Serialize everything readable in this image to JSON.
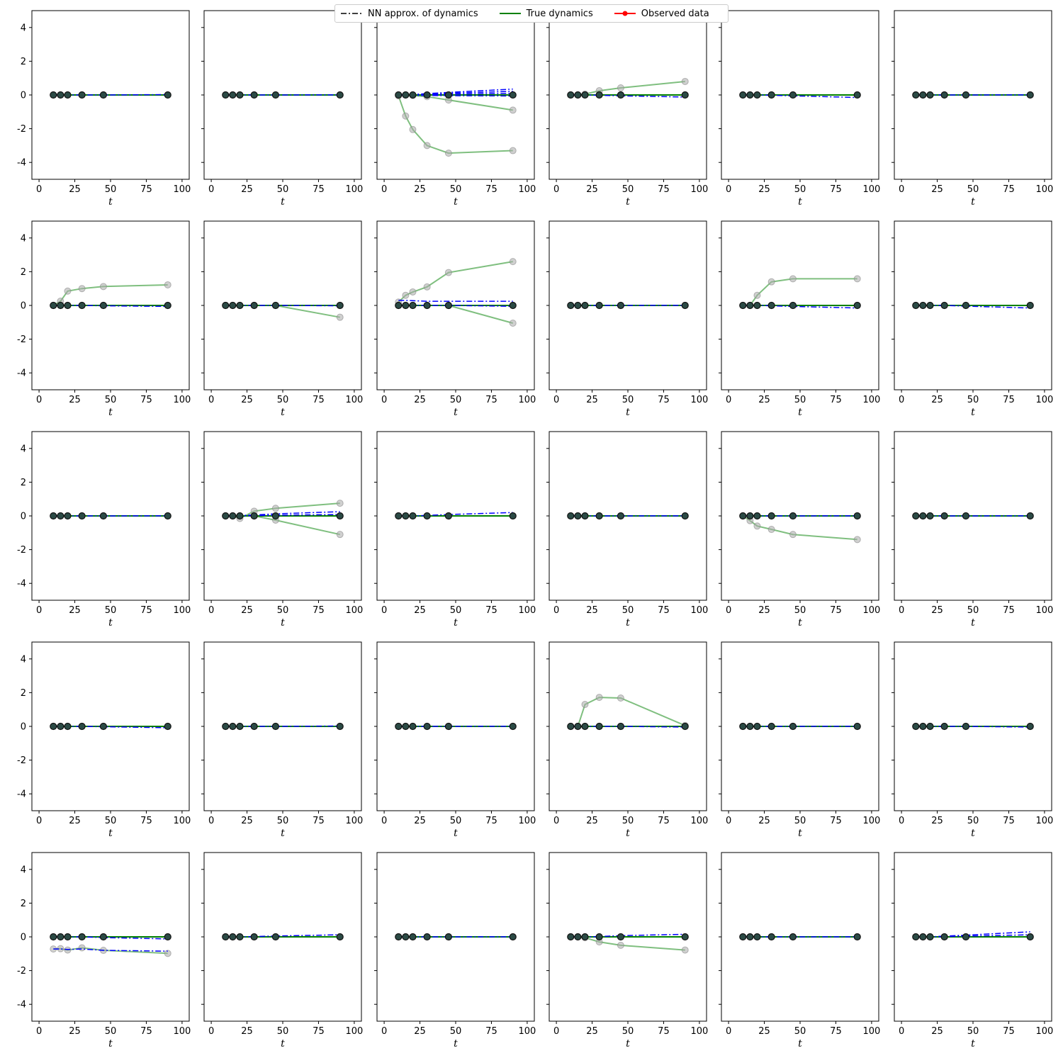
{
  "legend": {
    "nn_label": "NN approx. of dynamics",
    "true_label": "True dynamics",
    "obs_label": "Observed data"
  },
  "colors": {
    "true_line": "#008000",
    "nn_line": "#0000ff",
    "observed": "#ff0000",
    "marker_fill": "#2b4a45",
    "ghost": "#a9a9a9"
  },
  "chart_data": {
    "type": "line",
    "layout": "grid of 5 rows x 6 columns, shared y-axis per row",
    "xlabel": "t",
    "xlim": [
      -5,
      105
    ],
    "ylim": [
      -5,
      5
    ],
    "x_ticks": [
      0,
      25,
      50,
      75,
      100
    ],
    "y_ticks": [
      -4,
      -2,
      0,
      2,
      4
    ],
    "x_obs": [
      10,
      15,
      20,
      30,
      45,
      90
    ],
    "panels": [
      {
        "nn": [
          [
            0,
            0,
            0,
            0,
            0,
            0.02
          ]
        ],
        "gt": []
      },
      {
        "nn": [
          [
            0,
            0,
            0,
            0,
            0,
            0.01
          ]
        ],
        "gt": []
      },
      {
        "nn": [
          [
            0,
            0.01,
            0.03,
            0.08,
            0.15,
            0.35
          ],
          [
            0,
            0,
            0.02,
            0.05,
            0.1,
            0.22
          ],
          [
            0,
            0,
            0,
            0.02,
            0.04,
            0.1
          ],
          [
            0,
            0,
            -0.02,
            -0.03,
            -0.04,
            -0.06
          ]
        ],
        "gt": [
          [
            -0.05,
            -1.25,
            -2.05,
            -3.0,
            -3.45,
            -3.3
          ],
          [
            0,
            0,
            -0.03,
            -0.1,
            -0.3,
            -0.9
          ]
        ]
      },
      {
        "nn": [
          [
            0,
            0,
            0,
            -0.02,
            -0.05,
            -0.12
          ]
        ],
        "gt": [
          [
            0,
            0,
            0.05,
            0.25,
            0.42,
            0.8
          ]
        ]
      },
      {
        "nn": [
          [
            0,
            0,
            0,
            -0.02,
            -0.05,
            -0.15
          ]
        ],
        "gt": []
      },
      {
        "nn": [
          [
            0,
            0,
            0,
            0,
            0,
            0.01
          ]
        ],
        "gt": []
      },
      {
        "nn": [
          [
            0,
            0,
            0,
            0,
            -0.02,
            -0.06
          ]
        ],
        "gt": [
          [
            0,
            0.25,
            0.85,
            1.0,
            1.12,
            1.22
          ]
        ]
      },
      {
        "nn": [
          [
            0,
            0,
            0,
            0,
            0,
            -0.02
          ]
        ],
        "gt": [
          [
            0,
            0,
            0,
            0,
            0,
            -0.7
          ]
        ]
      },
      {
        "nn": [
          [
            0.3,
            0.3,
            0.28,
            0.25,
            0.25,
            0.25
          ],
          [
            0,
            0,
            0,
            0,
            0,
            -0.05
          ]
        ],
        "gt": [
          [
            0.2,
            0.6,
            0.8,
            1.1,
            1.95,
            2.6
          ],
          [
            0,
            0,
            0,
            0,
            0,
            -1.05
          ]
        ]
      },
      {
        "nn": [
          [
            0,
            0,
            0,
            0,
            0,
            0.01
          ]
        ],
        "gt": []
      },
      {
        "nn": [
          [
            0,
            0,
            0,
            -0.02,
            -0.06,
            -0.15
          ]
        ],
        "gt": [
          [
            0,
            0,
            0.6,
            1.4,
            1.58,
            1.58
          ]
        ]
      },
      {
        "nn": [
          [
            0,
            0,
            0,
            0,
            -0.04,
            -0.15
          ]
        ],
        "gt": []
      },
      {
        "nn": [
          [
            0,
            0,
            0,
            0,
            0,
            0.01
          ]
        ],
        "gt": []
      },
      {
        "nn": [
          [
            0,
            0,
            0.02,
            0.06,
            0.12,
            0.25
          ],
          [
            0,
            0,
            0,
            0.02,
            0.04,
            0.08
          ]
        ],
        "gt": [
          [
            0,
            0,
            -0.15,
            0.28,
            0.45,
            0.75
          ],
          [
            0,
            0,
            0,
            0,
            -0.25,
            -1.1
          ]
        ]
      },
      {
        "nn": [
          [
            0,
            0,
            0,
            0.03,
            0.08,
            0.2
          ]
        ],
        "gt": []
      },
      {
        "nn": [
          [
            0,
            0,
            0,
            0,
            0,
            0.01
          ]
        ],
        "gt": []
      },
      {
        "nn": [
          [
            0,
            0,
            0,
            0,
            0,
            0.01
          ]
        ],
        "gt": [
          [
            0,
            -0.28,
            -0.6,
            -0.8,
            -1.1,
            -1.4
          ]
        ]
      },
      {
        "nn": [
          [
            0,
            0,
            0,
            0,
            0,
            0.01
          ]
        ],
        "gt": []
      },
      {
        "nn": [
          [
            0,
            0,
            0,
            0,
            -0.02,
            -0.08
          ]
        ],
        "gt": []
      },
      {
        "nn": [
          [
            0,
            0,
            0,
            0,
            0,
            0.02
          ]
        ],
        "gt": []
      },
      {
        "nn": [
          [
            0,
            0,
            0,
            0,
            0,
            0.01
          ]
        ],
        "gt": []
      },
      {
        "nn": [
          [
            0,
            0,
            0,
            0,
            0,
            -0.04
          ]
        ],
        "gt": [
          [
            0,
            0,
            1.3,
            1.72,
            1.68,
            0.05
          ]
        ]
      },
      {
        "nn": [
          [
            0,
            0,
            0,
            0,
            0,
            0.01
          ]
        ],
        "gt": []
      },
      {
        "nn": [
          [
            0,
            0,
            0,
            0,
            0,
            -0.04
          ]
        ],
        "gt": []
      },
      {
        "nn": [
          [
            0,
            0,
            0,
            0,
            -0.04,
            -0.12
          ],
          [
            -0.72,
            -0.72,
            -0.75,
            -0.72,
            -0.8,
            -0.85
          ]
        ],
        "gt": [
          [
            -0.72,
            -0.7,
            -0.78,
            -0.65,
            -0.8,
            -0.98
          ]
        ]
      },
      {
        "nn": [
          [
            0,
            0,
            0,
            0.02,
            0.05,
            0.12
          ]
        ],
        "gt": []
      },
      {
        "nn": [
          [
            0,
            0,
            0,
            0,
            0,
            0.01
          ]
        ],
        "gt": []
      },
      {
        "nn": [
          [
            0,
            0,
            0,
            0.02,
            0.07,
            0.15
          ]
        ],
        "gt": [
          [
            0,
            0,
            -0.05,
            -0.3,
            -0.5,
            -0.78
          ]
        ]
      },
      {
        "nn": [
          [
            0,
            0,
            0,
            0,
            0,
            0.01
          ]
        ],
        "gt": []
      },
      {
        "nn": [
          [
            0,
            0,
            0,
            0.04,
            0.1,
            0.3
          ],
          [
            0,
            0,
            0,
            0.02,
            0.04,
            0.12
          ]
        ],
        "gt": []
      }
    ]
  }
}
